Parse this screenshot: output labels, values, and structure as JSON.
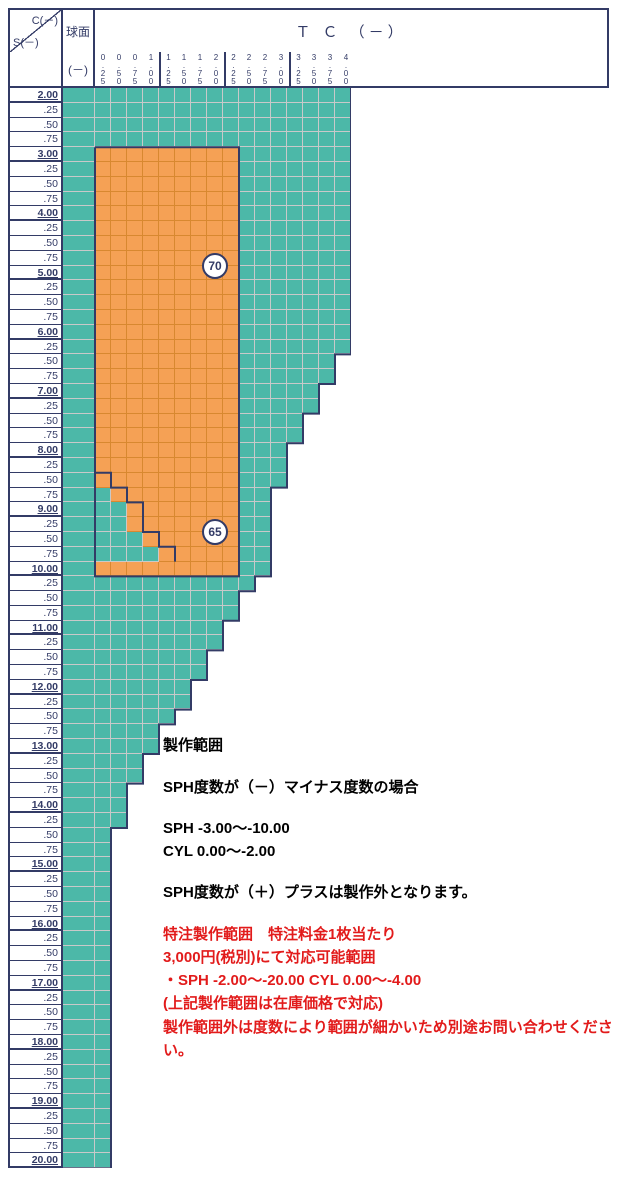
{
  "header": {
    "corner_c": "C(－)",
    "corner_s": "S(－)",
    "sphere": "球面",
    "tc": "Ｔ Ｃ （－）",
    "cyl_minus": "(－)",
    "tick_groups": [
      [
        "0.25",
        "0.50",
        "0.75",
        "1.00"
      ],
      [
        "1.25",
        "1.50",
        "1.75",
        "2.00"
      ],
      [
        "2.25",
        "2.50",
        "2.75",
        "3.00"
      ],
      [
        "3.25",
        "3.50",
        "3.75",
        "4.00"
      ]
    ]
  },
  "rows": {
    "start": 2.0,
    "end": 20.0,
    "step": 0.25,
    "majors_every": 4
  },
  "colors": {
    "teal": "#4cb8a8",
    "orange": "#f5a155",
    "orange_grid": "#d88830",
    "grid": "#c9c9c9",
    "border": "#333b66",
    "red": "#e21b1b"
  },
  "orange_region": {
    "row_start_value": 3.0,
    "row_end_value": 10.0,
    "col_start": 0,
    "col_end": 9,
    "stair_start_row_value": 8.5,
    "stair_desc": "from row 8.50 col 8 step down by 1 col every 0.25 until 10.00"
  },
  "teal_columns_by_row": "see render script comments",
  "badges": [
    {
      "text": "70",
      "row_value": 5.0,
      "col": 8.5
    },
    {
      "text": "65",
      "row_value": 9.5,
      "col": 8.5
    }
  ],
  "info": {
    "title": "製作範囲",
    "line1": "SPH度数が（－）マイナス度数の場合",
    "line2a": "SPH -3.00～-10.00",
    "line2b": "CYL 0.00～-2.00",
    "line3": "SPH度数が（＋）プラスは製作外となります。",
    "red1": "特注製作範囲　特注料金1枚当たり",
    "red2": "3,000円(税別)にて対応可能範囲",
    "red3": "・SPH -2.00～-20.00 CYL 0.00～-4.00",
    "red4": "(上記製作範囲は在庫価格で対応)",
    "red5": "製作範囲外は度数により範囲が細かいため別途お問い合わせください。"
  }
}
